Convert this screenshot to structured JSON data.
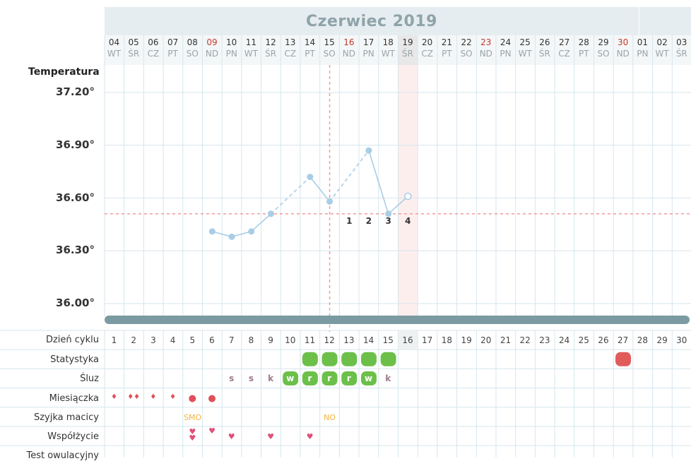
{
  "month": "Czerwiec 2019",
  "days": [
    {
      "d": "04",
      "w": "WT"
    },
    {
      "d": "05",
      "w": "ŚR"
    },
    {
      "d": "06",
      "w": "CZ"
    },
    {
      "d": "07",
      "w": "PT"
    },
    {
      "d": "08",
      "w": "SO"
    },
    {
      "d": "09",
      "w": "ND",
      "sun": true
    },
    {
      "d": "10",
      "w": "PN"
    },
    {
      "d": "11",
      "w": "WT"
    },
    {
      "d": "12",
      "w": "ŚR"
    },
    {
      "d": "13",
      "w": "CZ"
    },
    {
      "d": "14",
      "w": "PT"
    },
    {
      "d": "15",
      "w": "SO"
    },
    {
      "d": "16",
      "w": "ND",
      "sun": true
    },
    {
      "d": "17",
      "w": "PN"
    },
    {
      "d": "18",
      "w": "WT"
    },
    {
      "d": "19",
      "w": "ŚR",
      "today": true
    },
    {
      "d": "20",
      "w": "CZ"
    },
    {
      "d": "21",
      "w": "PT"
    },
    {
      "d": "22",
      "w": "SO"
    },
    {
      "d": "23",
      "w": "ND",
      "sun": true
    },
    {
      "d": "24",
      "w": "PN"
    },
    {
      "d": "25",
      "w": "WT"
    },
    {
      "d": "26",
      "w": "ŚR"
    },
    {
      "d": "27",
      "w": "CZ"
    },
    {
      "d": "28",
      "w": "PT"
    },
    {
      "d": "29",
      "w": "SO"
    },
    {
      "d": "30",
      "w": "ND",
      "sun": true
    },
    {
      "d": "01",
      "w": "PN"
    },
    {
      "d": "02",
      "w": "WT"
    },
    {
      "d": "03",
      "w": "ŚR"
    }
  ],
  "rows": {
    "cycle_day": "Dzień cyklu",
    "stats": "Statystyka",
    "mucus": "Śluz",
    "period": "Miesiączka",
    "cervix": "Szyjka macicy",
    "sex": "Współżycie",
    "ovulation_test": "Test owulacyjny"
  },
  "chart_data": {
    "type": "line",
    "ylabel": "Temperatura",
    "ylim": [
      35.9,
      37.3
    ],
    "yticks": [
      "37.20°",
      "36.90°",
      "36.60°",
      "36.30°",
      "36.00°"
    ],
    "cover_line": 36.51,
    "ovulation_day": 12,
    "points": [
      {
        "day": 6,
        "temp": 36.41
      },
      {
        "day": 7,
        "temp": 36.38
      },
      {
        "day": 8,
        "temp": 36.41
      },
      {
        "day": 9,
        "temp": 36.51
      },
      {
        "day": 11,
        "temp": 36.72
      },
      {
        "day": 12,
        "temp": 36.58
      },
      {
        "day": 14,
        "temp": 36.87
      },
      {
        "day": 15,
        "temp": 36.51
      },
      {
        "day": 16,
        "temp": 36.61,
        "open": true
      }
    ],
    "luteal_labels": [
      {
        "day": 13,
        "text": "1"
      },
      {
        "day": 14,
        "text": "2"
      },
      {
        "day": 15,
        "text": "3"
      },
      {
        "day": 16,
        "text": "4"
      }
    ]
  },
  "cycle_days": [
    "1",
    "2",
    "3",
    "4",
    "5",
    "6",
    "7",
    "8",
    "9",
    "10",
    "11",
    "12",
    "13",
    "14",
    "15",
    "16",
    "17",
    "18",
    "19",
    "20",
    "21",
    "22",
    "23",
    "24",
    "25",
    "26",
    "27",
    "28",
    "29",
    "30"
  ],
  "stats_days": [
    11,
    12,
    13,
    14,
    15
  ],
  "stats_red_day": 27,
  "mucus": [
    {
      "day": 7,
      "t": "s"
    },
    {
      "day": 8,
      "t": "s"
    },
    {
      "day": 9,
      "t": "k"
    },
    {
      "day": 10,
      "t": "w",
      "green": true
    },
    {
      "day": 11,
      "t": "r",
      "green": true
    },
    {
      "day": 12,
      "t": "r",
      "green": true
    },
    {
      "day": 13,
      "t": "r",
      "green": true
    },
    {
      "day": 14,
      "t": "w",
      "green": true
    },
    {
      "day": 15,
      "t": "k"
    }
  ],
  "period": [
    {
      "day": 1,
      "n": 1
    },
    {
      "day": 2,
      "n": 2
    },
    {
      "day": 3,
      "n": 1
    },
    {
      "day": 4,
      "n": 1
    },
    {
      "day": 5,
      "dot": true
    },
    {
      "day": 6,
      "dot": true
    }
  ],
  "cervix": [
    {
      "day": 5,
      "t": "SMO"
    },
    {
      "day": 12,
      "t": "NO"
    }
  ],
  "sex": [
    {
      "day": 5,
      "n": 2
    },
    {
      "day": 6,
      "n": 1
    },
    {
      "day": 7,
      "n": 1
    },
    {
      "day": 9,
      "n": 1
    },
    {
      "day": 11,
      "n": 1
    }
  ],
  "colors": {
    "line": "#a8cde6",
    "cover": "#f29a9a",
    "green": "#6cc04a",
    "red": "#e25b5b",
    "grid": "#d6e6ee",
    "heart": "#e0507a"
  }
}
